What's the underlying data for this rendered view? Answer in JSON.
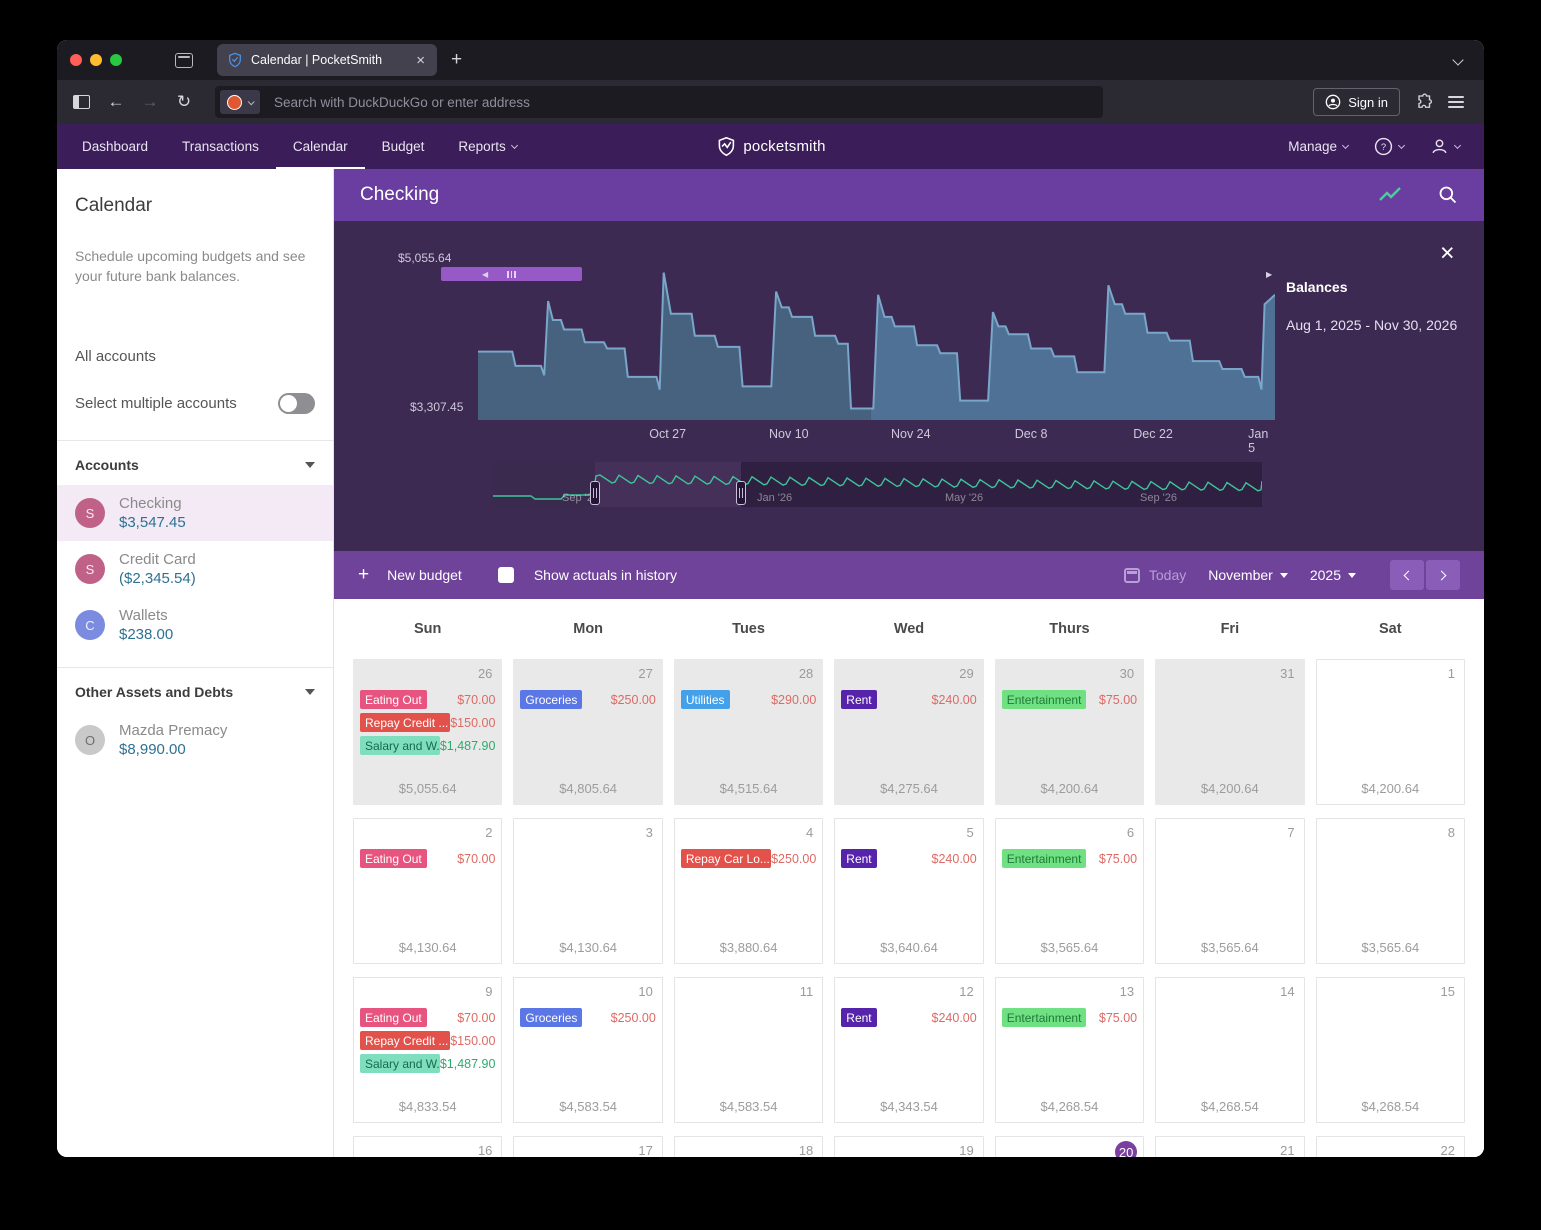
{
  "browser": {
    "tab_title": "Calendar | PocketSmith",
    "url_placeholder": "Search with DuckDuckGo or enter address",
    "sign_in_label": "Sign in"
  },
  "nav": {
    "items": [
      "Dashboard",
      "Transactions",
      "Calendar",
      "Budget",
      "Reports"
    ],
    "active": "Calendar",
    "brand": "pocketsmith",
    "manage_label": "Manage"
  },
  "sidebar": {
    "title": "Calendar",
    "description": "Schedule upcoming budgets and see your future bank balances.",
    "all_accounts_label": "All accounts",
    "select_multiple_label": "Select multiple accounts",
    "accounts_header": "Accounts",
    "accounts": [
      {
        "initial": "S",
        "avatar_color": "#c06287",
        "name": "Checking",
        "amount": "$3,547.45",
        "selected": true
      },
      {
        "initial": "S",
        "avatar_color": "#c06287",
        "name": "Credit Card",
        "amount": "($2,345.54)",
        "selected": false
      },
      {
        "initial": "C",
        "avatar_color": "#7b8be0",
        "name": "Wallets",
        "amount": "$238.00",
        "selected": false
      }
    ],
    "other_header": "Other Assets and Debts",
    "other_accounts": [
      {
        "initial": "O",
        "avatar_color": "#c9c9c9",
        "initial_color": "#6e6e6e",
        "name": "Mazda Premacy",
        "amount": "$8,990.00",
        "selected": false
      }
    ]
  },
  "panel": {
    "title": "Checking",
    "balances_title": "Balances",
    "balances_range": "Aug 1, 2025 - Nov 30, 2026",
    "close_glyph": "×"
  },
  "chart_data": {
    "type": "area",
    "title": "Balances",
    "date_range": "Aug 1, 2025 - Nov 30, 2026",
    "y_max_label": "$5,055.64",
    "y_min_label": "$3,307.45",
    "x_ticks": [
      {
        "label": "Oct 27",
        "pos": 0.238
      },
      {
        "label": "Nov 10",
        "pos": 0.39
      },
      {
        "label": "Nov 24",
        "pos": 0.543
      },
      {
        "label": "Dec 8",
        "pos": 0.694
      },
      {
        "label": "Dec 22",
        "pos": 0.847
      },
      {
        "label": "Jan 5",
        "pos": 0.979
      }
    ],
    "today_fraction": 0.493,
    "series": [
      [
        0.0,
        0.42
      ],
      [
        0.043,
        0.42
      ],
      [
        0.047,
        0.33
      ],
      [
        0.079,
        0.33
      ],
      [
        0.083,
        0.27
      ],
      [
        0.088,
        0.74
      ],
      [
        0.094,
        0.62
      ],
      [
        0.104,
        0.62
      ],
      [
        0.108,
        0.56
      ],
      [
        0.13,
        0.56
      ],
      [
        0.134,
        0.48
      ],
      [
        0.158,
        0.48
      ],
      [
        0.162,
        0.44
      ],
      [
        0.184,
        0.44
      ],
      [
        0.188,
        0.26
      ],
      [
        0.224,
        0.26
      ],
      [
        0.228,
        0.18
      ],
      [
        0.233,
        0.92
      ],
      [
        0.242,
        0.66
      ],
      [
        0.268,
        0.66
      ],
      [
        0.272,
        0.52
      ],
      [
        0.297,
        0.52
      ],
      [
        0.301,
        0.45
      ],
      [
        0.328,
        0.45
      ],
      [
        0.332,
        0.2
      ],
      [
        0.368,
        0.2
      ],
      [
        0.374,
        0.8
      ],
      [
        0.381,
        0.7
      ],
      [
        0.39,
        0.7
      ],
      [
        0.394,
        0.64
      ],
      [
        0.419,
        0.64
      ],
      [
        0.423,
        0.52
      ],
      [
        0.448,
        0.52
      ],
      [
        0.452,
        0.47
      ],
      [
        0.464,
        0.47
      ],
      [
        0.468,
        0.06
      ],
      [
        0.496,
        0.06
      ],
      [
        0.502,
        0.78
      ],
      [
        0.51,
        0.64
      ],
      [
        0.519,
        0.64
      ],
      [
        0.523,
        0.58
      ],
      [
        0.547,
        0.58
      ],
      [
        0.551,
        0.46
      ],
      [
        0.576,
        0.46
      ],
      [
        0.58,
        0.41
      ],
      [
        0.601,
        0.41
      ],
      [
        0.605,
        0.11
      ],
      [
        0.64,
        0.11
      ],
      [
        0.646,
        0.67
      ],
      [
        0.653,
        0.58
      ],
      [
        0.662,
        0.58
      ],
      [
        0.666,
        0.53
      ],
      [
        0.69,
        0.53
      ],
      [
        0.694,
        0.44
      ],
      [
        0.719,
        0.44
      ],
      [
        0.723,
        0.39
      ],
      [
        0.748,
        0.39
      ],
      [
        0.752,
        0.29
      ],
      [
        0.786,
        0.29
      ],
      [
        0.791,
        0.84
      ],
      [
        0.799,
        0.72
      ],
      [
        0.808,
        0.72
      ],
      [
        0.812,
        0.66
      ],
      [
        0.836,
        0.66
      ],
      [
        0.84,
        0.54
      ],
      [
        0.864,
        0.54
      ],
      [
        0.868,
        0.49
      ],
      [
        0.893,
        0.49
      ],
      [
        0.897,
        0.36
      ],
      [
        0.93,
        0.36
      ],
      [
        0.934,
        0.31
      ],
      [
        0.958,
        0.31
      ],
      [
        0.962,
        0.26
      ],
      [
        0.979,
        0.26
      ],
      [
        0.983,
        0.18
      ],
      [
        0.987,
        0.72
      ],
      [
        1.0,
        0.78
      ]
    ],
    "scrubber_labels": [
      {
        "label": "Sep '25",
        "x": 69
      },
      {
        "label": "Jan '26",
        "x": 264
      },
      {
        "label": "May '26",
        "x": 452
      },
      {
        "label": "Sep '26",
        "x": 647
      }
    ]
  },
  "toolbar": {
    "new_budget_label": "New budget",
    "show_actuals_label": "Show actuals in history",
    "today_label": "Today",
    "month": "November",
    "year": "2025"
  },
  "calendar": {
    "day_headers": [
      "Sun",
      "Mon",
      "Tues",
      "Wed",
      "Thurs",
      "Fri",
      "Sat"
    ],
    "weeks": [
      {
        "days": [
          {
            "num": "26",
            "out": true,
            "total": "$5,055.64",
            "events": [
              {
                "label": "Eating Out",
                "bg": "#e85480",
                "fg": "#ffffff",
                "amount": "$70.00",
                "amount_color": "#dd6a64"
              },
              {
                "label": "Repay Credit ...",
                "bg": "#e2524b",
                "fg": "#ffffff",
                "amount": "$150.00",
                "amount_color": "#dd6a64"
              },
              {
                "label": "Salary and W...",
                "bg": "#7fdebd",
                "fg": "#176a4f",
                "amount": "$1,487.90",
                "amount_color": "#2bab6e"
              }
            ]
          },
          {
            "num": "27",
            "out": true,
            "total": "$4,805.64",
            "events": [
              {
                "label": "Groceries",
                "bg": "#5b77e6",
                "fg": "#ffffff",
                "amount": "$250.00",
                "amount_color": "#dd6a64"
              }
            ]
          },
          {
            "num": "28",
            "out": true,
            "total": "$4,515.64",
            "events": [
              {
                "label": "Utilities",
                "bg": "#44a0e9",
                "fg": "#ffffff",
                "amount": "$290.00",
                "amount_color": "#dd6a64"
              }
            ]
          },
          {
            "num": "29",
            "out": true,
            "total": "$4,275.64",
            "events": [
              {
                "label": "Rent",
                "bg": "#5623ab",
                "fg": "#ffffff",
                "amount": "$240.00",
                "amount_color": "#dd6a64"
              }
            ]
          },
          {
            "num": "30",
            "out": true,
            "total": "$4,200.64",
            "events": [
              {
                "label": "Entertainment",
                "bg": "#70e183",
                "fg": "#1f7a38",
                "amount": "$75.00",
                "amount_color": "#dd6a64"
              }
            ]
          },
          {
            "num": "31",
            "out": true,
            "total": "$4,200.64",
            "events": []
          },
          {
            "num": "1",
            "out": false,
            "total": "$4,200.64",
            "events": []
          }
        ]
      },
      {
        "days": [
          {
            "num": "2",
            "out": false,
            "total": "$4,130.64",
            "events": [
              {
                "label": "Eating Out",
                "bg": "#e85480",
                "fg": "#ffffff",
                "amount": "$70.00",
                "amount_color": "#dd6a64"
              }
            ]
          },
          {
            "num": "3",
            "out": false,
            "total": "$4,130.64",
            "events": []
          },
          {
            "num": "4",
            "out": false,
            "total": "$3,880.64",
            "events": [
              {
                "label": "Repay Car Lo...",
                "bg": "#e2524b",
                "fg": "#ffffff",
                "amount": "$250.00",
                "amount_color": "#dd6a64"
              }
            ]
          },
          {
            "num": "5",
            "out": false,
            "total": "$3,640.64",
            "events": [
              {
                "label": "Rent",
                "bg": "#5623ab",
                "fg": "#ffffff",
                "amount": "$240.00",
                "amount_color": "#dd6a64"
              }
            ]
          },
          {
            "num": "6",
            "out": false,
            "total": "$3,565.64",
            "events": [
              {
                "label": "Entertainment",
                "bg": "#70e183",
                "fg": "#1f7a38",
                "amount": "$75.00",
                "amount_color": "#dd6a64"
              }
            ]
          },
          {
            "num": "7",
            "out": false,
            "total": "$3,565.64",
            "events": []
          },
          {
            "num": "8",
            "out": false,
            "total": "$3,565.64",
            "events": []
          }
        ]
      },
      {
        "days": [
          {
            "num": "9",
            "out": false,
            "total": "$4,833.54",
            "events": [
              {
                "label": "Eating Out",
                "bg": "#e85480",
                "fg": "#ffffff",
                "amount": "$70.00",
                "amount_color": "#dd6a64"
              },
              {
                "label": "Repay Credit ...",
                "bg": "#e2524b",
                "fg": "#ffffff",
                "amount": "$150.00",
                "amount_color": "#dd6a64"
              },
              {
                "label": "Salary and W...",
                "bg": "#7fdebd",
                "fg": "#176a4f",
                "amount": "$1,487.90",
                "amount_color": "#2bab6e"
              }
            ]
          },
          {
            "num": "10",
            "out": false,
            "total": "$4,583.54",
            "events": [
              {
                "label": "Groceries",
                "bg": "#5b77e6",
                "fg": "#ffffff",
                "amount": "$250.00",
                "amount_color": "#dd6a64"
              }
            ]
          },
          {
            "num": "11",
            "out": false,
            "total": "$4,583.54",
            "events": []
          },
          {
            "num": "12",
            "out": false,
            "total": "$4,343.54",
            "events": [
              {
                "label": "Rent",
                "bg": "#5623ab",
                "fg": "#ffffff",
                "amount": "$240.00",
                "amount_color": "#dd6a64"
              }
            ]
          },
          {
            "num": "13",
            "out": false,
            "total": "$4,268.54",
            "events": [
              {
                "label": "Entertainment",
                "bg": "#70e183",
                "fg": "#1f7a38",
                "amount": "$75.00",
                "amount_color": "#dd6a64"
              }
            ]
          },
          {
            "num": "14",
            "out": false,
            "total": "$4,268.54",
            "events": []
          },
          {
            "num": "15",
            "out": false,
            "total": "$4,268.54",
            "events": []
          }
        ]
      },
      {
        "days": [
          {
            "num": "16",
            "out": false,
            "total": "",
            "events": []
          },
          {
            "num": "17",
            "out": false,
            "total": "",
            "events": []
          },
          {
            "num": "18",
            "out": false,
            "total": "",
            "events": []
          },
          {
            "num": "19",
            "out": false,
            "total": "",
            "events": []
          },
          {
            "num": "20",
            "out": false,
            "today": true,
            "total": "",
            "events": []
          },
          {
            "num": "21",
            "out": false,
            "total": "",
            "events": []
          },
          {
            "num": "22",
            "out": false,
            "total": "",
            "events": []
          }
        ]
      }
    ]
  }
}
